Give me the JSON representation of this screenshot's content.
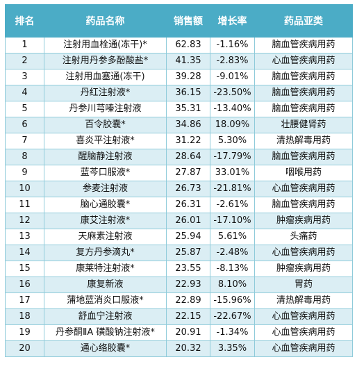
{
  "table": {
    "headers": [
      "排名",
      "药品名称",
      "销售额",
      "增长率",
      "药品亚类"
    ],
    "rows": [
      {
        "rank": "1",
        "name": "注射用血栓通(冻干)*",
        "sales": "62.83",
        "growth": "-1.16%",
        "category": "脑血管疾病用药"
      },
      {
        "rank": "2",
        "name": "注射用丹参多酚酸盐*",
        "sales": "41.35",
        "growth": "-2.83%",
        "category": "心血管疾病用药"
      },
      {
        "rank": "3",
        "name": "注射用血塞通(冻干)",
        "sales": "39.28",
        "growth": "-9.01%",
        "category": "脑血管疾病用药"
      },
      {
        "rank": "4",
        "name": "丹红注射液*",
        "sales": "36.15",
        "growth": "-23.50%",
        "category": "脑血管疾病用药"
      },
      {
        "rank": "5",
        "name": "丹参川芎嗪注射液",
        "sales": "35.31",
        "growth": "-13.40%",
        "category": "脑血管疾病用药"
      },
      {
        "rank": "6",
        "name": "百令胶囊*",
        "sales": "34.86",
        "growth": "18.09%",
        "category": "壮腰健肾药"
      },
      {
        "rank": "7",
        "name": "喜炎平注射液*",
        "sales": "31.22",
        "growth": "5.30%",
        "category": "清热解毒用药"
      },
      {
        "rank": "8",
        "name": "醒脑静注射液",
        "sales": "28.64",
        "growth": "-17.79%",
        "category": "脑血管疾病用药"
      },
      {
        "rank": "9",
        "name": "蓝芩口服液*",
        "sales": "27.87",
        "growth": "33.01%",
        "category": "咽喉用药"
      },
      {
        "rank": "10",
        "name": "参麦注射液",
        "sales": "26.73",
        "growth": "-21.81%",
        "category": "心血管疾病用药"
      },
      {
        "rank": "11",
        "name": "脑心通胶囊*",
        "sales": "26.31",
        "growth": "-2.61%",
        "category": "脑血管疾病用药"
      },
      {
        "rank": "12",
        "name": "康艾注射液*",
        "sales": "26.01",
        "growth": "-17.10%",
        "category": "肿瘤疾病用药"
      },
      {
        "rank": "13",
        "name": "天麻素注射液",
        "sales": "25.94",
        "growth": "5.61%",
        "category": "头痛药"
      },
      {
        "rank": "14",
        "name": "复方丹参滴丸*",
        "sales": "25.87",
        "growth": "-2.48%",
        "category": "心血管疾病用药"
      },
      {
        "rank": "15",
        "name": "康莱特注射液*",
        "sales": "23.55",
        "growth": "-8.13%",
        "category": "肿瘤疾病用药"
      },
      {
        "rank": "16",
        "name": "康复新液",
        "sales": "22.93",
        "growth": "8.10%",
        "category": "胃药"
      },
      {
        "rank": "17",
        "name": "蒲地蓝消炎口服液*",
        "sales": "22.89",
        "growth": "-15.96%",
        "category": "清热解毒用药"
      },
      {
        "rank": "18",
        "name": "舒血宁注射液",
        "sales": "22.15",
        "growth": "-22.67%",
        "category": "心血管疾病用药"
      },
      {
        "rank": "19",
        "name": "丹参酮ⅡA 磺酸钠注射液*",
        "sales": "20.91",
        "growth": "-1.34%",
        "category": "心血管疾病用药"
      },
      {
        "rank": "20",
        "name": "通心络胶囊*",
        "sales": "20.32",
        "growth": "3.35%",
        "category": "心血管疾病用药"
      }
    ]
  },
  "colors": {
    "header_bg": "#4bacc6",
    "header_text": "#ffffff",
    "stripe": "#dbeef4",
    "border": "#8fcbda"
  }
}
